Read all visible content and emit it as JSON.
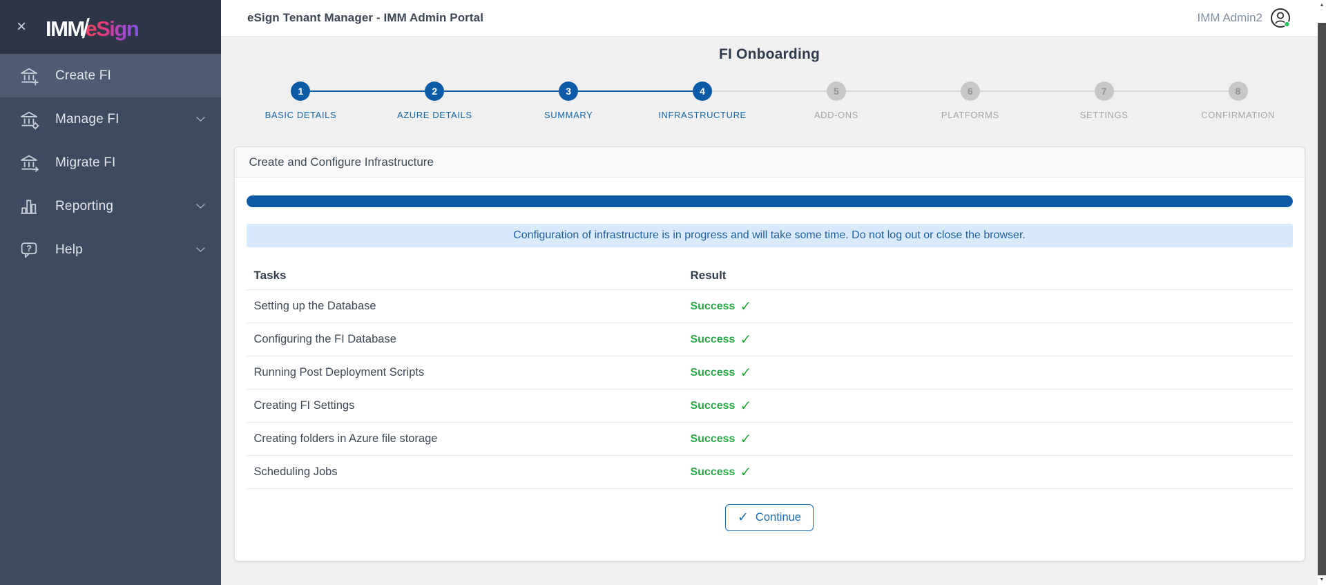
{
  "header": {
    "app_title": "eSign Tenant Manager - IMM Admin Portal",
    "user_name": "IMM Admin2"
  },
  "sidebar": {
    "logo": {
      "imm": "IMM",
      "slash": "/",
      "esign": "eSign"
    },
    "items": [
      {
        "label": "Create FI",
        "icon": "bank-plus-icon",
        "active": true,
        "expandable": false
      },
      {
        "label": "Manage FI",
        "icon": "bank-gear-icon",
        "active": false,
        "expandable": true
      },
      {
        "label": "Migrate FI",
        "icon": "bank-arrow-icon",
        "active": false,
        "expandable": false
      },
      {
        "label": "Reporting",
        "icon": "bar-chart-icon",
        "active": false,
        "expandable": true
      },
      {
        "label": "Help",
        "icon": "help-bubble-icon",
        "active": false,
        "expandable": true
      }
    ]
  },
  "page": {
    "title": "FI Onboarding"
  },
  "stepper": {
    "steps": [
      {
        "num": "1",
        "label": "BASIC DETAILS",
        "active": true
      },
      {
        "num": "2",
        "label": "AZURE DETAILS",
        "active": true
      },
      {
        "num": "3",
        "label": "SUMMARY",
        "active": true
      },
      {
        "num": "4",
        "label": "INFRASTRUCTURE",
        "active": true
      },
      {
        "num": "5",
        "label": "ADD-ONS",
        "active": false
      },
      {
        "num": "6",
        "label": "PLATFORMS",
        "active": false
      },
      {
        "num": "7",
        "label": "SETTINGS",
        "active": false
      },
      {
        "num": "8",
        "label": "CONFIRMATION",
        "active": false
      }
    ]
  },
  "card": {
    "title": "Create and Configure Infrastructure",
    "progress_percent": 100,
    "alert_message": "Configuration of infrastructure is in progress and will take some time. Do not log out or close the browser.",
    "table": {
      "columns": {
        "tasks": "Tasks",
        "result": "Result"
      },
      "rows": [
        {
          "task": "Setting up the Database",
          "result": "Success"
        },
        {
          "task": "Configuring the FI Database",
          "result": "Success"
        },
        {
          "task": "Running Post Deployment Scripts",
          "result": "Success"
        },
        {
          "task": "Creating FI Settings",
          "result": "Success"
        },
        {
          "task": "Creating folders in Azure file storage",
          "result": "Success"
        },
        {
          "task": "Scheduling Jobs",
          "result": "Success"
        }
      ]
    },
    "continue_label": "Continue"
  },
  "icons": {
    "close": "×",
    "check": "✓",
    "question": "?",
    "arrow_up": "▲",
    "arrow_down": "▼"
  },
  "colors": {
    "primary_blue": "#0d5aa7",
    "success_green": "#28a745",
    "alert_bg": "#d9eafc",
    "sidebar_bg": "#3e4a60",
    "sidebar_top_bg": "#2d3547",
    "selected_item_bg": "#4e5b73"
  }
}
